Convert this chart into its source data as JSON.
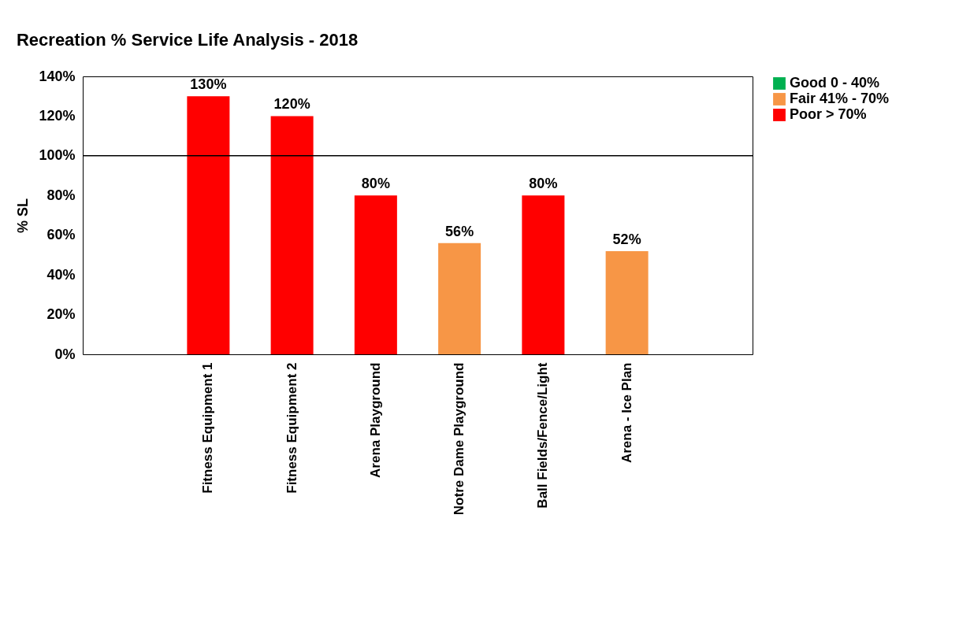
{
  "chart_data": {
    "type": "bar",
    "title": "Recreation % Service Life Analysis - 2018",
    "ylabel": "% SL",
    "categories": [
      null,
      "Fitness Equipment 1",
      "Fitness Equipment 2",
      "Arena Playground",
      "Notre Dame Playground",
      "Ball Fields/Fence/Light",
      "Arena - Ice Plan",
      null
    ],
    "series": [
      {
        "name": "Good 0 - 40%",
        "color": "#00b050",
        "values": [
          null,
          null,
          null,
          null,
          null,
          null,
          null,
          null
        ]
      },
      {
        "name": "Fair 41% - 70%",
        "color": "#f79646",
        "values": [
          null,
          null,
          null,
          null,
          56,
          null,
          52,
          null
        ],
        "value_labels": [
          null,
          null,
          null,
          null,
          "56%",
          null,
          "52%",
          null
        ]
      },
      {
        "name": "Poor > 70%",
        "color": "#ff0000",
        "values": [
          null,
          130,
          120,
          80,
          null,
          80,
          null,
          null
        ],
        "value_labels": [
          null,
          "130%",
          "120%",
          "80%",
          null,
          "80%",
          null,
          null
        ]
      }
    ],
    "ylim": [
      0,
      140
    ],
    "yticks": [
      {
        "value": 0,
        "label": "0%"
      },
      {
        "value": 20,
        "label": "20%"
      },
      {
        "value": 40,
        "label": "40%"
      },
      {
        "value": 60,
        "label": "60%"
      },
      {
        "value": 80,
        "label": "80%"
      },
      {
        "value": 100,
        "label": "100%"
      },
      {
        "value": 120,
        "label": "120%"
      },
      {
        "value": 140,
        "label": "140%"
      }
    ],
    "ref_lines": [
      {
        "axis": "y",
        "value": 100,
        "color": "#000000"
      }
    ],
    "legend": "right",
    "grid": false
  }
}
